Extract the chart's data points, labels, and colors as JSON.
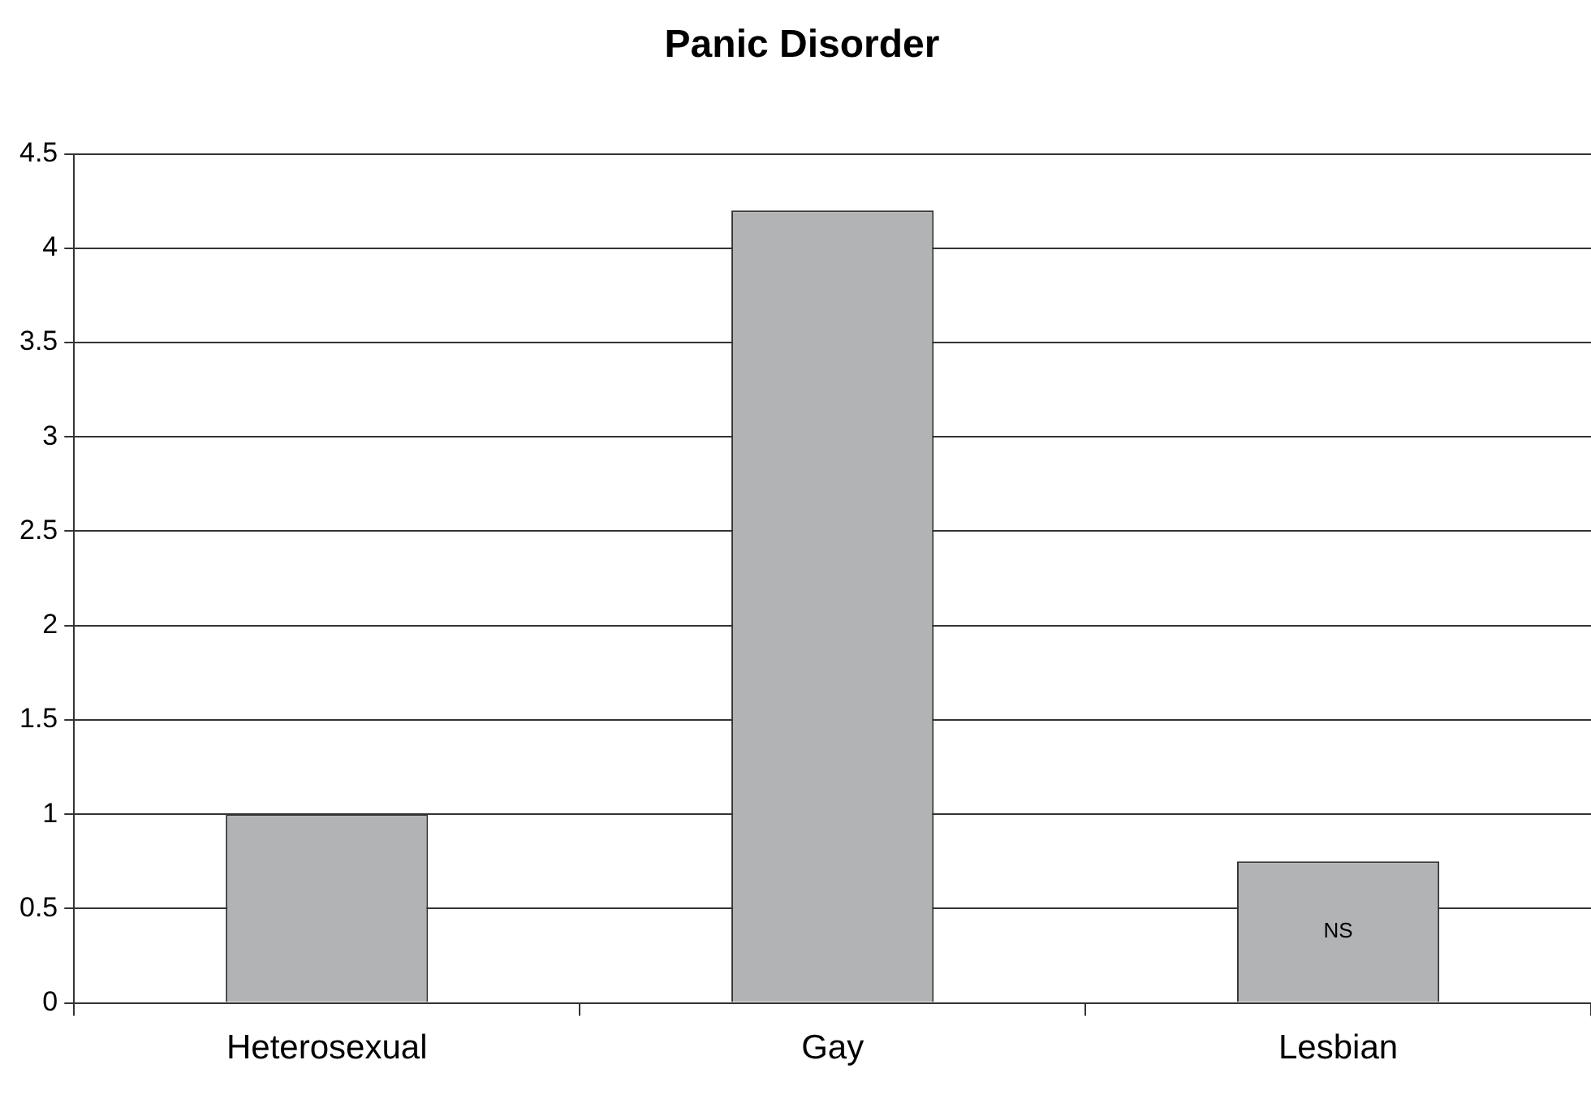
{
  "chart_data": {
    "type": "bar",
    "title": "Panic Disorder",
    "categories": [
      "Heterosexual",
      "Gay",
      "Lesbian"
    ],
    "values": [
      1.0,
      4.2,
      0.75
    ],
    "color": "#b2b3b5",
    "ylim": [
      0,
      4.5
    ],
    "yticks": [
      0,
      0.5,
      1,
      1.5,
      2,
      2.5,
      3,
      3.5,
      4,
      4.5
    ],
    "grid": "y",
    "legend": false,
    "annotations": [
      "NS"
    ]
  }
}
